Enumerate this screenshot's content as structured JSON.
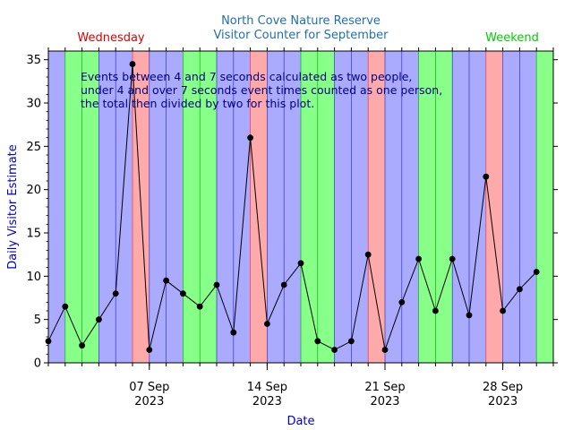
{
  "chart_data": {
    "type": "line",
    "title": "North Cove Nature Reserve",
    "subtitle": "Visitor Counter for September",
    "xlabel": "Date",
    "ylabel": "Daily Visitor Estimate",
    "ylim": [
      0,
      36
    ],
    "yticks": [
      0,
      5,
      10,
      15,
      20,
      25,
      30,
      35
    ],
    "x_start_day": 1,
    "x_end_day": 31,
    "xticks": [
      {
        "day": 7,
        "label": "07 Sep",
        "year": "2023"
      },
      {
        "day": 14,
        "label": "14 Sep",
        "year": "2023"
      },
      {
        "day": 21,
        "label": "21 Sep",
        "year": "2023"
      },
      {
        "day": 28,
        "label": "28 Sep",
        "year": "2023"
      }
    ],
    "days": [
      1,
      2,
      3,
      4,
      5,
      6,
      7,
      8,
      9,
      10,
      11,
      12,
      13,
      14,
      15,
      16,
      17,
      18,
      19,
      20,
      21,
      22,
      23,
      24,
      25,
      26,
      27,
      28,
      29,
      30
    ],
    "values": [
      2.5,
      6.5,
      2,
      5,
      8,
      34.5,
      1.5,
      9.5,
      8,
      6.5,
      9,
      3.5,
      26,
      4.5,
      9,
      11.5,
      2.5,
      1.5,
      2.5,
      12.5,
      1.5,
      7,
      12,
      6,
      12,
      5.5,
      21.5,
      6,
      8.5,
      10.5
    ],
    "day_bands": [
      {
        "start": 1,
        "end": 2,
        "type": "weekday"
      },
      {
        "start": 2,
        "end": 4,
        "type": "weekend"
      },
      {
        "start": 4,
        "end": 6,
        "type": "weekday"
      },
      {
        "start": 6,
        "end": 7,
        "type": "wednesday"
      },
      {
        "start": 7,
        "end": 9,
        "type": "weekday"
      },
      {
        "start": 9,
        "end": 11,
        "type": "weekend"
      },
      {
        "start": 11,
        "end": 13,
        "type": "weekday"
      },
      {
        "start": 13,
        "end": 14,
        "type": "wednesday"
      },
      {
        "start": 14,
        "end": 16,
        "type": "weekday"
      },
      {
        "start": 16,
        "end": 18,
        "type": "weekend"
      },
      {
        "start": 18,
        "end": 20,
        "type": "weekday"
      },
      {
        "start": 20,
        "end": 21,
        "type": "wednesday"
      },
      {
        "start": 21,
        "end": 23,
        "type": "weekday"
      },
      {
        "start": 23,
        "end": 25,
        "type": "weekend"
      },
      {
        "start": 25,
        "end": 27,
        "type": "weekday"
      },
      {
        "start": 27,
        "end": 28,
        "type": "wednesday"
      },
      {
        "start": 28,
        "end": 30,
        "type": "weekday"
      },
      {
        "start": 30,
        "end": 31,
        "type": "weekend"
      }
    ],
    "band_colors": {
      "weekday": "#aaaaff",
      "weekend": "#88ff88",
      "wednesday": "#ffaaaa"
    },
    "band_edge_colors": {
      "weekday": "#3333cc",
      "weekend": "#00bb00",
      "wednesday": "#ff3333"
    },
    "legend": [
      {
        "label": "Wednesday",
        "color": "#dd0000",
        "position": "top-left"
      },
      {
        "label": "Weekend",
        "color": "#00cc00",
        "position": "top-right"
      }
    ],
    "annotation": [
      "Events between 4 and 7 seconds calculated as two people,",
      "under 4 and over 7 seconds event times counted as one person,",
      "the total then divided by two for this plot."
    ],
    "colors": {
      "title": "#1f6fae",
      "axis_label": "#0000cc",
      "annotation_text": "#000080",
      "line": "#000000",
      "marker": "#000000"
    }
  }
}
